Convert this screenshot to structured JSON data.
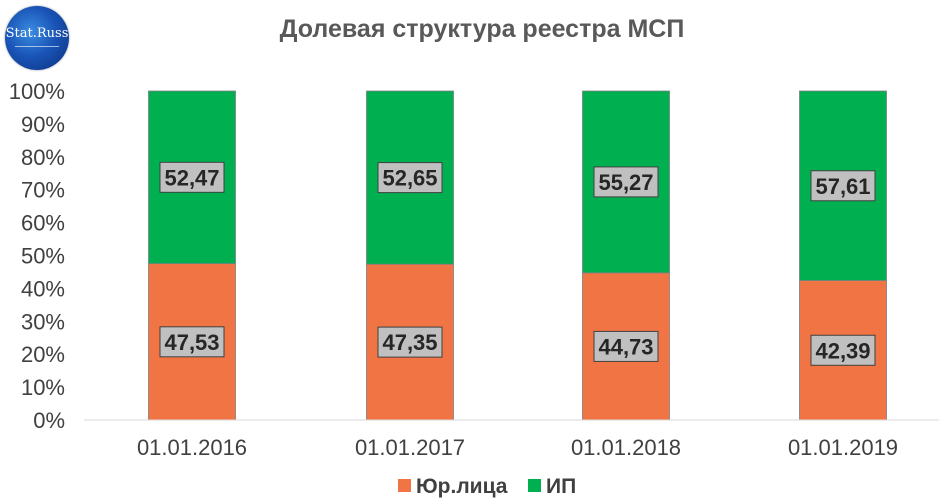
{
  "logo": {
    "text": "Stat.Russ"
  },
  "chart_data": {
    "type": "bar",
    "stacked": true,
    "title": "Долевая структура реестра МСП",
    "categories": [
      "01.01.2016",
      "01.01.2017",
      "01.01.2018",
      "01.01.2019"
    ],
    "series": [
      {
        "name": "Юр.лица",
        "values": [
          47.53,
          47.35,
          44.73,
          42.39
        ],
        "labels": [
          "47,53",
          "47,35",
          "44,73",
          "42,39"
        ],
        "color": "#f07444"
      },
      {
        "name": "ИП",
        "values": [
          52.47,
          52.65,
          55.27,
          57.61
        ],
        "labels": [
          "52,47",
          "52,65",
          "55,27",
          "57,61"
        ],
        "color": "#00b050"
      }
    ],
    "yticks": [
      "0%",
      "10%",
      "20%",
      "30%",
      "40%",
      "50%",
      "60%",
      "70%",
      "80%",
      "90%",
      "100%"
    ],
    "ylim": [
      0,
      100
    ],
    "grid": false,
    "legend_position": "bottom",
    "data_label_background": "#c0c0c0"
  }
}
